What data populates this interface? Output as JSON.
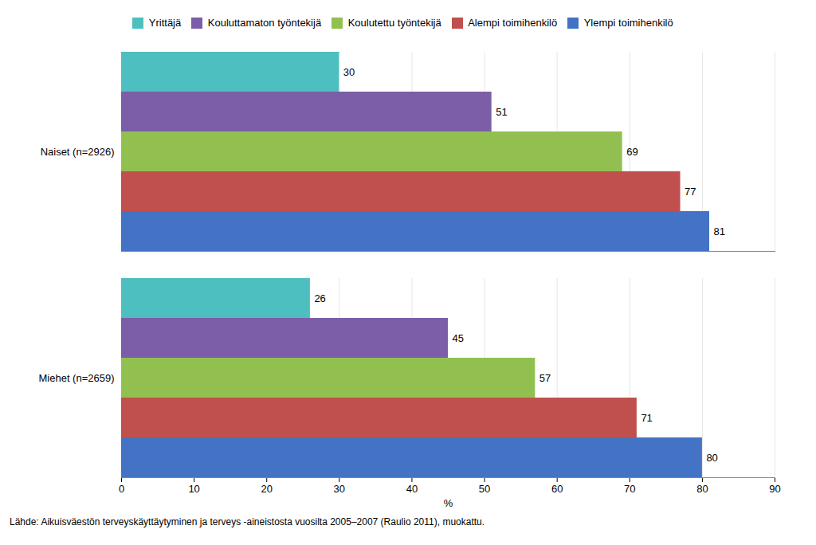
{
  "chart_data": {
    "type": "bar",
    "orientation": "horizontal",
    "categories": [
      "Naiset (n=2926)",
      "Miehet (n=2659)"
    ],
    "series": [
      {
        "name": "Yrittäjä",
        "color": "#4DBFC0",
        "values": [
          30,
          26
        ]
      },
      {
        "name": "Kouluttamaton työntekijä",
        "color": "#7B5EA7",
        "values": [
          51,
          45
        ]
      },
      {
        "name": "Koulutettu työntekijä",
        "color": "#92C050",
        "values": [
          69,
          57
        ]
      },
      {
        "name": "Alempi toimihenkilö",
        "color": "#C0504D",
        "values": [
          77,
          71
        ]
      },
      {
        "name": "Ylempi toimihenkilö",
        "color": "#4472C4",
        "values": [
          81,
          80
        ]
      }
    ],
    "xlabel": "%",
    "xlim": [
      0,
      90
    ],
    "xticks": [
      0,
      10,
      20,
      30,
      40,
      50,
      60,
      70,
      80,
      90
    ],
    "grid": true,
    "legend": "top",
    "data_labels": true,
    "footnote": "Lähde: Aikuisväestön terveyskäyttäytyminen ja terveys -aineistosta vuosilta 2005–2007 (Raulio 2011), muokattu."
  }
}
